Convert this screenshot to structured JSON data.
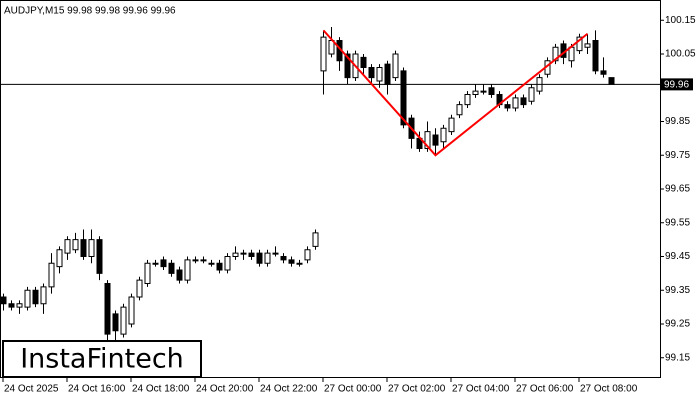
{
  "chart_data": {
    "type": "candlestick",
    "title": "AUDJPY,M15  99.98 99.98 99.96 99.96",
    "watermark": "InstaFintech",
    "categories": [
      "24 Oct 2025",
      null,
      null,
      null,
      null,
      null,
      null,
      null,
      "24 Oct 16:00",
      null,
      null,
      null,
      null,
      null,
      null,
      null,
      "24 Oct 18:00",
      null,
      null,
      null,
      null,
      null,
      null,
      null,
      "24 Oct 20:00",
      null,
      null,
      null,
      null,
      null,
      null,
      null,
      "24 Oct 22:00",
      null,
      null,
      null,
      null,
      null,
      null,
      null,
      "27 Oct 00:00",
      null,
      null,
      null,
      null,
      null,
      null,
      null,
      "27 Oct 02:00",
      null,
      null,
      null,
      null,
      null,
      null,
      null,
      "27 Oct 04:00",
      null,
      null,
      null,
      null,
      null,
      null,
      null,
      "27 Oct 06:00",
      null,
      null,
      null,
      null,
      null,
      null,
      null,
      "27 Oct 08:00",
      null,
      null,
      null,
      null
    ],
    "open": [
      99.33,
      99.31,
      99.3,
      99.3,
      99.35,
      99.31,
      99.36,
      99.42,
      99.46,
      99.47,
      99.5,
      99.45,
      99.5,
      99.37,
      99.28,
      99.22,
      99.25,
      99.33,
      99.37,
      99.43,
      99.44,
      99.43,
      99.41,
      99.38,
      99.44,
      99.44,
      99.43,
      99.43,
      99.41,
      99.45,
      99.46,
      99.46,
      99.46,
      99.43,
      99.46,
      99.45,
      99.44,
      99.43,
      99.44,
      99.48,
      100.0,
      100.05,
      100.09,
      100.05,
      99.98,
      100.04,
      100.01,
      99.97,
      100.02,
      99.98,
      100.0,
      99.86,
      99.8,
      99.77,
      99.81,
      99.79,
      99.82,
      99.87,
      99.9,
      99.93,
      99.94,
      99.95,
      99.93,
      99.9,
      99.89,
      99.92,
      99.91,
      99.94,
      99.99,
      100.03,
      100.08,
      100.03,
      100.06,
      100.07,
      100.09,
      100.0,
      99.98
    ],
    "high": [
      99.34,
      99.32,
      99.32,
      99.36,
      99.36,
      99.37,
      99.46,
      99.48,
      99.51,
      99.52,
      99.53,
      99.53,
      99.51,
      99.38,
      99.29,
      99.31,
      99.34,
      99.39,
      99.44,
      99.44,
      99.45,
      99.44,
      99.42,
      99.45,
      99.45,
      99.45,
      99.44,
      99.44,
      99.46,
      99.48,
      99.47,
      99.47,
      99.47,
      99.47,
      99.48,
      99.46,
      99.45,
      99.44,
      99.48,
      99.53,
      100.12,
      100.13,
      100.1,
      100.06,
      100.06,
      100.05,
      100.02,
      100.02,
      100.03,
      100.06,
      100.01,
      99.87,
      99.82,
      99.85,
      99.83,
      99.84,
      99.87,
      99.91,
      99.94,
      99.96,
      99.96,
      99.96,
      99.94,
      99.91,
      99.93,
      99.93,
      99.96,
      99.99,
      100.04,
      100.08,
      100.09,
      100.08,
      100.11,
      100.11,
      100.12,
      100.04,
      99.98
    ],
    "low": [
      99.29,
      99.29,
      99.28,
      99.29,
      99.3,
      99.28,
      99.34,
      99.4,
      99.44,
      99.46,
      99.44,
      99.43,
      99.38,
      99.2,
      99.18,
      99.21,
      99.24,
      99.32,
      99.36,
      99.42,
      99.41,
      99.39,
      99.37,
      99.37,
      99.43,
      99.43,
      99.42,
      99.4,
      99.4,
      99.44,
      99.44,
      99.44,
      99.42,
      99.42,
      99.45,
      99.43,
      99.42,
      99.42,
      99.43,
      99.47,
      99.93,
      100.04,
      100.0,
      99.96,
      99.97,
      99.99,
      99.96,
      99.95,
      99.93,
      99.97,
      99.83,
      99.77,
      99.76,
      99.76,
      99.75,
      99.77,
      99.81,
      99.86,
      99.89,
      99.92,
      99.93,
      99.92,
      99.89,
      99.88,
      99.88,
      99.89,
      99.9,
      99.93,
      99.98,
      100.02,
      100.02,
      100.01,
      100.05,
      100.05,
      99.99,
      99.98,
      99.96
    ],
    "close": [
      99.31,
      99.3,
      99.31,
      99.35,
      99.31,
      99.36,
      99.43,
      99.47,
      99.5,
      99.5,
      99.45,
      99.5,
      99.4,
      99.22,
      99.23,
      99.3,
      99.33,
      99.38,
      99.43,
      99.43,
      99.42,
      99.4,
      99.38,
      99.44,
      99.44,
      99.44,
      99.43,
      99.41,
      99.45,
      99.46,
      99.46,
      99.45,
      99.43,
      99.46,
      99.46,
      99.44,
      99.43,
      99.43,
      99.47,
      99.52,
      100.1,
      100.09,
      100.03,
      99.98,
      100.05,
      100.01,
      99.98,
      100.01,
      99.96,
      100.05,
      99.84,
      99.8,
      99.77,
      99.82,
      99.78,
      99.83,
      99.86,
      99.9,
      99.93,
      99.94,
      99.94,
      99.93,
      99.9,
      99.89,
      99.92,
      99.9,
      99.95,
      99.98,
      100.03,
      100.07,
      100.04,
      100.07,
      100.1,
      100.08,
      100.0,
      99.99,
      99.96
    ],
    "pattern": {
      "color": "#ff0000",
      "x": [
        40,
        54,
        73
      ],
      "values": [
        100.12,
        99.75,
        100.11
      ]
    },
    "current_price": 99.96,
    "ylim": [
      99.09,
      100.21
    ],
    "yticks": [
      {
        "value": 100.15,
        "label": "100.15"
      },
      {
        "value": 100.05,
        "label": "100.05"
      },
      99.85,
      99.75,
      99.65,
      99.55,
      99.45,
      99.35,
      99.25,
      99.15
    ]
  }
}
